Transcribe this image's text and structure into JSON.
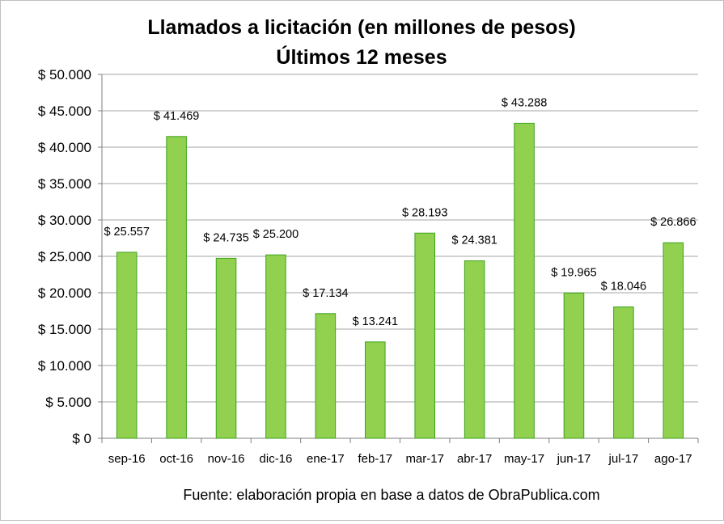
{
  "chart_data": {
    "type": "bar",
    "title": "Llamados a licitación (en millones de pesos)",
    "subtitle": "Últimos 12 meses",
    "categories": [
      "sep-16",
      "oct-16",
      "nov-16",
      "dic-16",
      "ene-17",
      "feb-17",
      "mar-17",
      "abr-17",
      "may-17",
      "jun-17",
      "jul-17",
      "ago-17"
    ],
    "values": [
      25557,
      41469,
      24735,
      25200,
      17134,
      13241,
      28193,
      24381,
      43288,
      19965,
      18046,
      26866
    ],
    "data_labels": [
      "$ 25.557",
      "$ 41.469",
      "$ 24.735",
      "$ 25.200",
      "$ 17.134",
      "$ 13.241",
      "$ 28.193",
      "$ 24.381",
      "$ 43.288",
      "$ 19.965",
      "$ 18.046",
      "$ 26.866"
    ],
    "ylim": [
      0,
      50000
    ],
    "yticks": [
      0,
      5000,
      10000,
      15000,
      20000,
      25000,
      30000,
      35000,
      40000,
      45000,
      50000
    ],
    "ytick_labels": [
      "$ 0",
      "$ 5.000",
      "$ 10.000",
      "$ 15.000",
      "$ 20.000",
      "$ 25.000",
      "$ 30.000",
      "$ 35.000",
      "$ 40.000",
      "$ 45.000",
      "$ 50.000"
    ],
    "grid": true,
    "legend": false,
    "bar_color": "#92d050",
    "bar_border_color": "#3ca31b",
    "source": "Fuente: elaboración propia en base a datos de ObraPublica.com"
  }
}
